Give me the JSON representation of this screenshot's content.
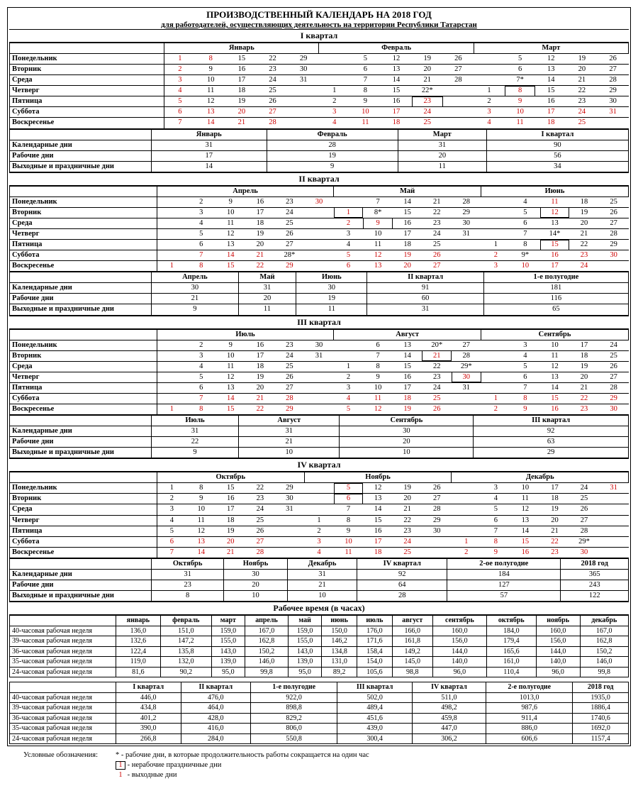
{
  "title": "ПРОИЗВОДСТВЕННЫЙ КАЛЕНДАРЬ НА 2018 ГОД",
  "subtitle": "для работодателей, осуществляющих деятельность на территории Республики Татарстан",
  "quarters": [
    "I квартал",
    "II квартал",
    "III квартал",
    "IV квартал"
  ],
  "days": [
    "Понедельник",
    "Вторник",
    "Среда",
    "Четверг",
    "Пятница",
    "Суббота",
    "Воскресенье"
  ],
  "months": [
    "Январь",
    "Февраль",
    "Март",
    "Апрель",
    "Май",
    "Июнь",
    "Июль",
    "Август",
    "Сентябрь",
    "Октябрь",
    "Ноябрь",
    "Декабрь"
  ],
  "stat_rows": [
    "Календарные дни",
    "Рабочие дни",
    "Выходные и праздничные дни"
  ],
  "q1": {
    "jan": [
      [
        "1r",
        "8r",
        "15",
        "22",
        "29"
      ],
      [
        "2r",
        "9",
        "16",
        "23",
        "30"
      ],
      [
        "3r",
        "10",
        "17",
        "24",
        "31"
      ],
      [
        "4r",
        "11",
        "18",
        "25",
        ""
      ],
      [
        "5r",
        "12",
        "19",
        "26",
        ""
      ],
      [
        "6r",
        "13r",
        "20r",
        "27r",
        ""
      ],
      [
        "7r",
        "14r",
        "21r",
        "28r",
        ""
      ]
    ],
    "feb": [
      [
        "",
        "5",
        "12",
        "19",
        "26"
      ],
      [
        "",
        "6",
        "13",
        "20",
        "27"
      ],
      [
        "",
        "7",
        "14",
        "21",
        "28"
      ],
      [
        "1",
        "8",
        "15",
        "22*",
        ""
      ],
      [
        "2",
        "9",
        "16",
        "23rb",
        ""
      ],
      [
        "3r",
        "10r",
        "17r",
        "24r",
        ""
      ],
      [
        "4r",
        "11r",
        "18r",
        "25r",
        ""
      ]
    ],
    "mar": [
      [
        "",
        "5",
        "12",
        "19",
        "26"
      ],
      [
        "",
        "6",
        "13",
        "20",
        "27"
      ],
      [
        "",
        "7*",
        "14",
        "21",
        "28"
      ],
      [
        "1",
        "8rb",
        "15",
        "22",
        "29"
      ],
      [
        "2",
        "9r",
        "16",
        "23",
        "30"
      ],
      [
        "3r",
        "10r",
        "17r",
        "24r",
        "31r"
      ],
      [
        "4r",
        "11r",
        "18r",
        "25r",
        ""
      ]
    ]
  },
  "q1_stats": {
    "cols": [
      "Январь",
      "Февраль",
      "Март",
      "I квартал"
    ],
    "cal": [
      "31",
      "28",
      "31",
      "90"
    ],
    "work": [
      "17",
      "19",
      "20",
      "56"
    ],
    "hol": [
      "14",
      "9",
      "11",
      "34"
    ]
  },
  "q2": {
    "apr": [
      [
        "",
        "2",
        "9",
        "16",
        "23",
        "30r"
      ],
      [
        "",
        "3",
        "10",
        "17",
        "24",
        ""
      ],
      [
        "",
        "4",
        "11",
        "18",
        "25",
        ""
      ],
      [
        "",
        "5",
        "12",
        "19",
        "26",
        ""
      ],
      [
        "",
        "6",
        "13",
        "20",
        "27",
        ""
      ],
      [
        "",
        "7r",
        "14r",
        "21r",
        "28*",
        ""
      ],
      [
        "1r",
        "8r",
        "15r",
        "22r",
        "29r",
        ""
      ]
    ],
    "may": [
      [
        "",
        "7",
        "14",
        "21",
        "28"
      ],
      [
        "1rb",
        "8*",
        "15",
        "22",
        "29"
      ],
      [
        "2r",
        "9rb",
        "16",
        "23",
        "30"
      ],
      [
        "3",
        "10",
        "17",
        "24",
        "31"
      ],
      [
        "4",
        "11",
        "18",
        "25",
        ""
      ],
      [
        "5r",
        "12r",
        "19r",
        "26r",
        ""
      ],
      [
        "6r",
        "13r",
        "20r",
        "27r",
        ""
      ]
    ],
    "jun": [
      [
        "",
        "4",
        "11r",
        "18",
        "25"
      ],
      [
        "",
        "5",
        "12rb",
        "19",
        "26"
      ],
      [
        "",
        "6",
        "13",
        "20",
        "27"
      ],
      [
        "",
        "7",
        "14*",
        "21",
        "28"
      ],
      [
        "1",
        "8",
        "15rb",
        "22",
        "29"
      ],
      [
        "2r",
        "9*",
        "16r",
        "23r",
        "30r"
      ],
      [
        "3r",
        "10r",
        "17r",
        "24r",
        ""
      ]
    ]
  },
  "q2_stats": {
    "cols": [
      "Апрель",
      "Май",
      "Июнь",
      "II квартал",
      "1-е полугодие"
    ],
    "cal": [
      "30",
      "31",
      "30",
      "91",
      "181"
    ],
    "work": [
      "21",
      "20",
      "19",
      "60",
      "116"
    ],
    "hol": [
      "9",
      "11",
      "11",
      "31",
      "65"
    ]
  },
  "q3": {
    "jul": [
      [
        "",
        "2",
        "9",
        "16",
        "23",
        "30"
      ],
      [
        "",
        "3",
        "10",
        "17",
        "24",
        "31"
      ],
      [
        "",
        "4",
        "11",
        "18",
        "25",
        ""
      ],
      [
        "",
        "5",
        "12",
        "19",
        "26",
        ""
      ],
      [
        "",
        "6",
        "13",
        "20",
        "27",
        ""
      ],
      [
        "",
        "7r",
        "14r",
        "21r",
        "28r",
        ""
      ],
      [
        "1r",
        "8r",
        "15r",
        "22r",
        "29r",
        ""
      ]
    ],
    "aug": [
      [
        "",
        "6",
        "13",
        "20*",
        "27"
      ],
      [
        "",
        "7",
        "14",
        "21rb",
        "28"
      ],
      [
        "1",
        "8",
        "15",
        "22",
        "29*"
      ],
      [
        "2",
        "9",
        "16",
        "23",
        "30rb"
      ],
      [
        "3",
        "10",
        "17",
        "24",
        "31"
      ],
      [
        "4r",
        "11r",
        "18r",
        "25r",
        ""
      ],
      [
        "5r",
        "12r",
        "19r",
        "26r",
        ""
      ]
    ],
    "sep": [
      [
        "",
        "3",
        "10",
        "17",
        "24"
      ],
      [
        "",
        "4",
        "11",
        "18",
        "25"
      ],
      [
        "",
        "5",
        "12",
        "19",
        "26"
      ],
      [
        "",
        "6",
        "13",
        "20",
        "27"
      ],
      [
        "",
        "7",
        "14",
        "21",
        "28"
      ],
      [
        "1r",
        "8r",
        "15r",
        "22r",
        "29r"
      ],
      [
        "2r",
        "9r",
        "16r",
        "23r",
        "30r"
      ]
    ]
  },
  "q3_stats": {
    "cols": [
      "Июль",
      "Август",
      "Сентябрь",
      "III квартал"
    ],
    "cal": [
      "31",
      "31",
      "30",
      "92"
    ],
    "work": [
      "22",
      "21",
      "20",
      "63"
    ],
    "hol": [
      "9",
      "10",
      "10",
      "29"
    ]
  },
  "q4": {
    "oct": [
      [
        "1",
        "8",
        "15",
        "22",
        "29"
      ],
      [
        "2",
        "9",
        "16",
        "23",
        "30"
      ],
      [
        "3",
        "10",
        "17",
        "24",
        "31"
      ],
      [
        "4",
        "11",
        "18",
        "25",
        ""
      ],
      [
        "5",
        "12",
        "19",
        "26",
        ""
      ],
      [
        "6r",
        "13r",
        "20r",
        "27r",
        ""
      ],
      [
        "7r",
        "14r",
        "21r",
        "28r",
        ""
      ]
    ],
    "nov": [
      [
        "",
        "5rb",
        "12",
        "19",
        "26"
      ],
      [
        "",
        "6rb",
        "13",
        "20",
        "27"
      ],
      [
        "",
        "7",
        "14",
        "21",
        "28"
      ],
      [
        "1",
        "8",
        "15",
        "22",
        "29"
      ],
      [
        "2",
        "9",
        "16",
        "23",
        "30"
      ],
      [
        "3r",
        "10r",
        "17r",
        "24r",
        ""
      ],
      [
        "4r",
        "11r",
        "18r",
        "25r",
        ""
      ]
    ],
    "dec": [
      [
        "",
        "3",
        "10",
        "17",
        "24",
        "31r"
      ],
      [
        "",
        "4",
        "11",
        "18",
        "25",
        ""
      ],
      [
        "",
        "5",
        "12",
        "19",
        "26",
        ""
      ],
      [
        "",
        "6",
        "13",
        "20",
        "27",
        ""
      ],
      [
        "",
        "7",
        "14",
        "21",
        "28",
        ""
      ],
      [
        "1r",
        "8r",
        "15r",
        "22r",
        "29*",
        ""
      ],
      [
        "2r",
        "9r",
        "16r",
        "23r",
        "30r",
        ""
      ]
    ]
  },
  "q4_stats": {
    "cols": [
      "Октябрь",
      "Ноябрь",
      "Декабрь",
      "IV квартал",
      "2-ое полугодие",
      "2018 год"
    ],
    "cal": [
      "31",
      "30",
      "31",
      "92",
      "184",
      "365"
    ],
    "work": [
      "23",
      "20",
      "21",
      "64",
      "127",
      "243"
    ],
    "hol": [
      "8",
      "10",
      "10",
      "28",
      "57",
      "122"
    ]
  },
  "hours_title": "Рабочее время (в часах)",
  "hours_months": [
    "январь",
    "февраль",
    "март",
    "апрель",
    "май",
    "июнь",
    "июль",
    "август",
    "сентябрь",
    "октябрь",
    "ноябрь",
    "декабрь"
  ],
  "hours_rows": [
    {
      "l": "40-часовая рабочая неделя",
      "v": [
        "136,0",
        "151,0",
        "159,0",
        "167,0",
        "159,0",
        "150,0",
        "176,0",
        "166,0",
        "160,0",
        "184,0",
        "160,0",
        "167,0"
      ]
    },
    {
      "l": "39-часовая рабочая неделя",
      "v": [
        "132,6",
        "147,2",
        "155,0",
        "162,8",
        "155,0",
        "146,2",
        "171,6",
        "161,8",
        "156,0",
        "179,4",
        "156,0",
        "162,8"
      ]
    },
    {
      "l": "36-часовая рабочая неделя",
      "v": [
        "122,4",
        "135,8",
        "143,0",
        "150,2",
        "143,0",
        "134,8",
        "158,4",
        "149,2",
        "144,0",
        "165,6",
        "144,0",
        "150,2"
      ]
    },
    {
      "l": "35-часовая рабочая неделя",
      "v": [
        "119,0",
        "132,0",
        "139,0",
        "146,0",
        "139,0",
        "131,0",
        "154,0",
        "145,0",
        "140,0",
        "161,0",
        "140,0",
        "146,0"
      ]
    },
    {
      "l": "24-часовая рабочая неделя",
      "v": [
        "81,6",
        "90,2",
        "95,0",
        "99,8",
        "95,0",
        "89,2",
        "105,6",
        "98,8",
        "96,0",
        "110,4",
        "96,0",
        "99,8"
      ]
    }
  ],
  "hours_q_cols": [
    "I квартал",
    "II квартал",
    "1-е полугодие",
    "III квартал",
    "IV квартал",
    "2-е полугодие",
    "2018 год"
  ],
  "hours_q_rows": [
    {
      "l": "40-часовая рабочая неделя",
      "v": [
        "446,0",
        "476,0",
        "922,0",
        "502,0",
        "511,0",
        "1013,0",
        "1935,0"
      ]
    },
    {
      "l": "39-часовая рабочая неделя",
      "v": [
        "434,8",
        "464,0",
        "898,8",
        "489,4",
        "498,2",
        "987,6",
        "1886,4"
      ]
    },
    {
      "l": "36-часовая рабочая неделя",
      "v": [
        "401,2",
        "428,0",
        "829,2",
        "451,6",
        "459,8",
        "911,4",
        "1740,6"
      ]
    },
    {
      "l": "35-часовая рабочая неделя",
      "v": [
        "390,0",
        "416,0",
        "806,0",
        "439,0",
        "447,0",
        "886,0",
        "1692,0"
      ]
    },
    {
      "l": "24-часовая рабочая неделя",
      "v": [
        "266,8",
        "284,0",
        "550,8",
        "300,4",
        "306,2",
        "606,6",
        "1157,4"
      ]
    }
  ],
  "legend": {
    "title": "Условные обозначения:",
    "l1": "* - рабочие дни, в которые продолжительность работы сокращается на один час",
    "l2": " - нерабочие праздничные дни",
    "l2_box": "1",
    "l3": " - выходные дни",
    "l3_num": "1"
  }
}
